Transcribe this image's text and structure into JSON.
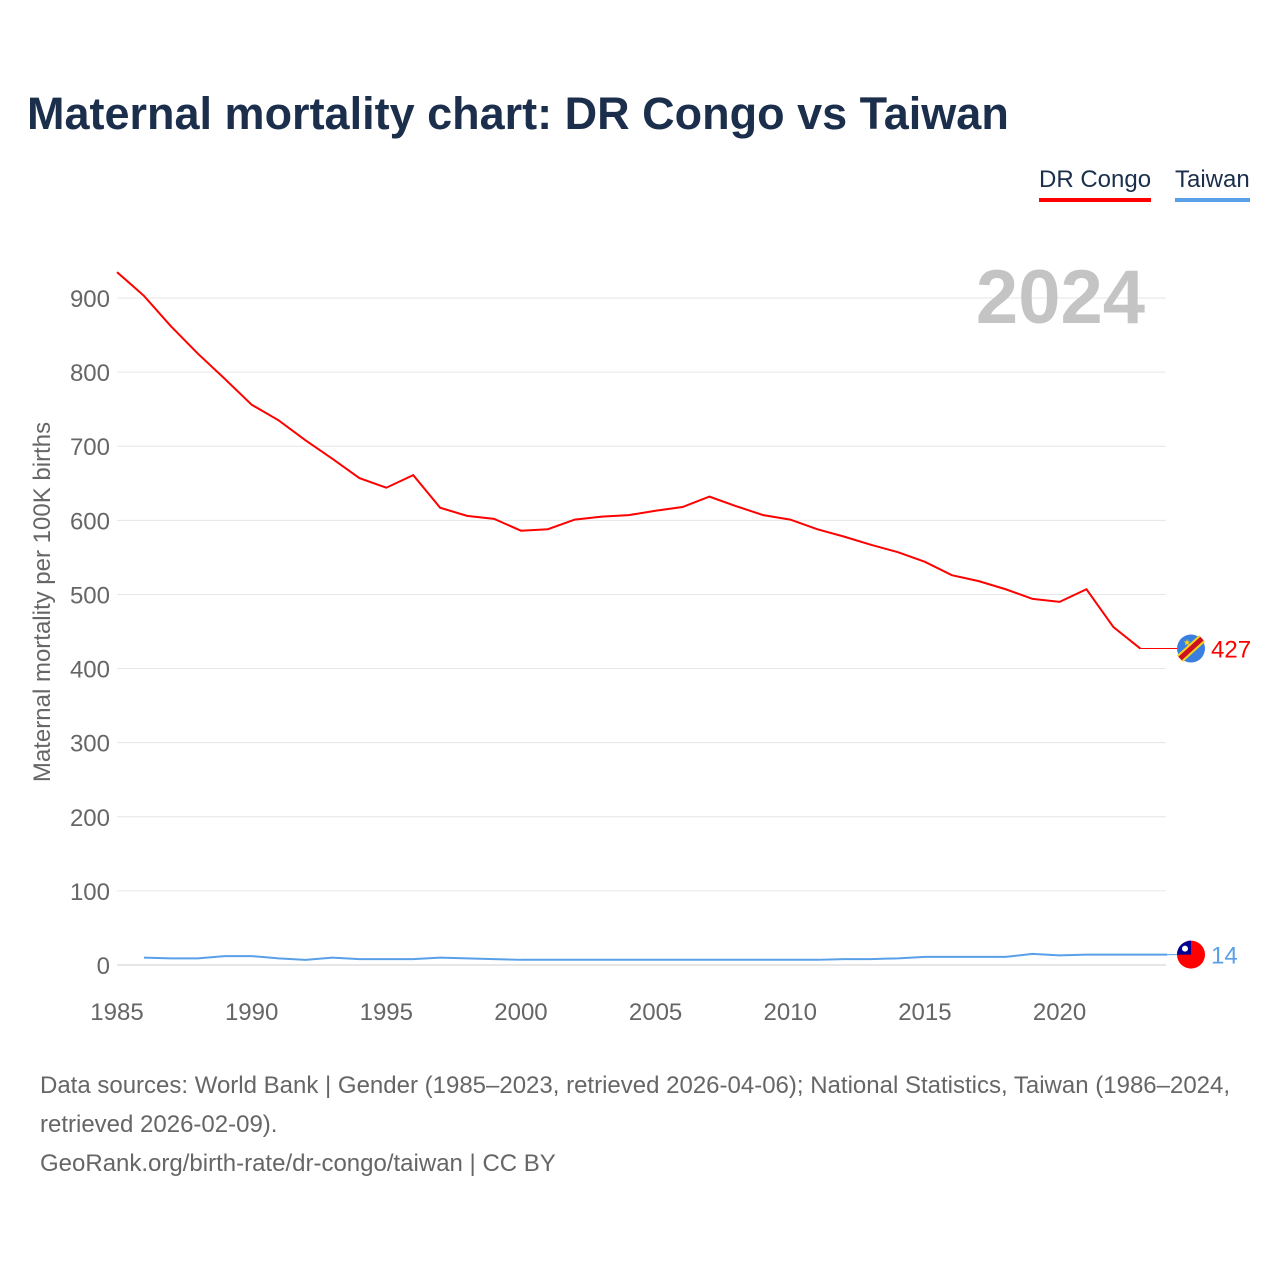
{
  "title": "Maternal mortality chart: DR Congo vs Taiwan",
  "legend": [
    "DR Congo",
    "Taiwan"
  ],
  "year_label": "2024",
  "source": {
    "line1": "Data sources: World Bank | Gender (1985–2023, retrieved 2026-04-06); National Statistics, Taiwan (1986–2024, retrieved 2026-02-09).",
    "line2": "GeoRank.org/birth-rate/dr-congo/taiwan | CC BY"
  },
  "chart_data": {
    "type": "line",
    "title": "Maternal mortality chart: DR Congo vs Taiwan",
    "xlabel": "",
    "ylabel": "Maternal mortality per 100K births",
    "xlim": [
      1985,
      2024
    ],
    "ylim": [
      0,
      900
    ],
    "xticks": [
      1985,
      1990,
      1995,
      2000,
      2005,
      2010,
      2015,
      2020
    ],
    "yticks": [
      0,
      100,
      200,
      300,
      400,
      500,
      600,
      700,
      800,
      900
    ],
    "grid": true,
    "legend_position": "top-right",
    "series": [
      {
        "name": "DR Congo",
        "color": "#ff0000",
        "end_label": "427",
        "x": [
          1985,
          1986,
          1987,
          1988,
          1989,
          1990,
          1991,
          1992,
          1993,
          1994,
          1995,
          1996,
          1997,
          1998,
          1999,
          2000,
          2001,
          2002,
          2003,
          2004,
          2005,
          2006,
          2007,
          2008,
          2009,
          2010,
          2011,
          2012,
          2013,
          2014,
          2015,
          2016,
          2017,
          2018,
          2019,
          2020,
          2021,
          2022,
          2023
        ],
        "values": [
          935,
          903,
          862,
          825,
          791,
          756,
          735,
          708,
          683,
          657,
          644,
          661,
          617,
          606,
          602,
          586,
          588,
          601,
          605,
          607,
          613,
          618,
          632,
          619,
          607,
          601,
          588,
          578,
          567,
          557,
          544,
          526,
          518,
          507,
          494,
          490,
          507,
          456,
          427
        ]
      },
      {
        "name": "Taiwan",
        "color": "#5aa0e8",
        "end_label": "14",
        "x": [
          1986,
          1987,
          1988,
          1989,
          1990,
          1991,
          1992,
          1993,
          1994,
          1995,
          1996,
          1997,
          1998,
          1999,
          2000,
          2001,
          2002,
          2003,
          2004,
          2005,
          2006,
          2007,
          2008,
          2009,
          2010,
          2011,
          2012,
          2013,
          2014,
          2015,
          2016,
          2017,
          2018,
          2019,
          2020,
          2021,
          2022,
          2023,
          2024
        ],
        "values": [
          10,
          9,
          9,
          12,
          12,
          9,
          7,
          10,
          8,
          8,
          8,
          10,
          9,
          8,
          7,
          7,
          7,
          7,
          7,
          7,
          7,
          7,
          7,
          7,
          7,
          7,
          8,
          8,
          9,
          11,
          11,
          11,
          11,
          15,
          13,
          14,
          14,
          14,
          14
        ]
      }
    ]
  }
}
